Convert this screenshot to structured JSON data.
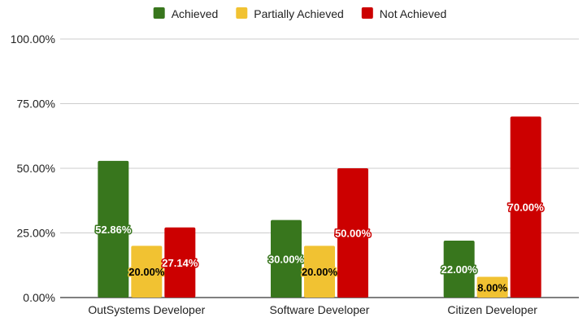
{
  "chart_data": {
    "type": "bar",
    "categories": [
      "OutSystems Developer",
      "Software Developer",
      "Citizen Developer"
    ],
    "series": [
      {
        "name": "Achieved",
        "color": "#38761d",
        "values": [
          52.86,
          30.0,
          22.0
        ],
        "labels": [
          "52.86%",
          "30.00%",
          "22.00%"
        ],
        "label_text_color": "#ffffff",
        "label_stroke_color": "#38761d"
      },
      {
        "name": "Partially Achieved",
        "color": "#f1c232",
        "values": [
          20.0,
          20.0,
          8.0
        ],
        "labels": [
          "20.00%",
          "20.00%",
          "8.00%"
        ],
        "label_text_color": "#000000",
        "label_stroke_color": "#f1c232"
      },
      {
        "name": "Not Achieved",
        "color": "#cc0000",
        "values": [
          27.14,
          50.0,
          70.0
        ],
        "labels": [
          "27.14%",
          "50.00%",
          "70.00%"
        ],
        "label_text_color": "#ffffff",
        "label_stroke_color": "#cc0000"
      }
    ],
    "ylim": [
      0,
      100
    ],
    "yticks": [
      0,
      25,
      50,
      75,
      100
    ],
    "ytick_labels": [
      "0.00%",
      "25.00%",
      "50.00%",
      "75.00%",
      "100.00%"
    ],
    "title": "",
    "xlabel": "",
    "ylabel": "",
    "legend": "top-center",
    "grid": true
  }
}
